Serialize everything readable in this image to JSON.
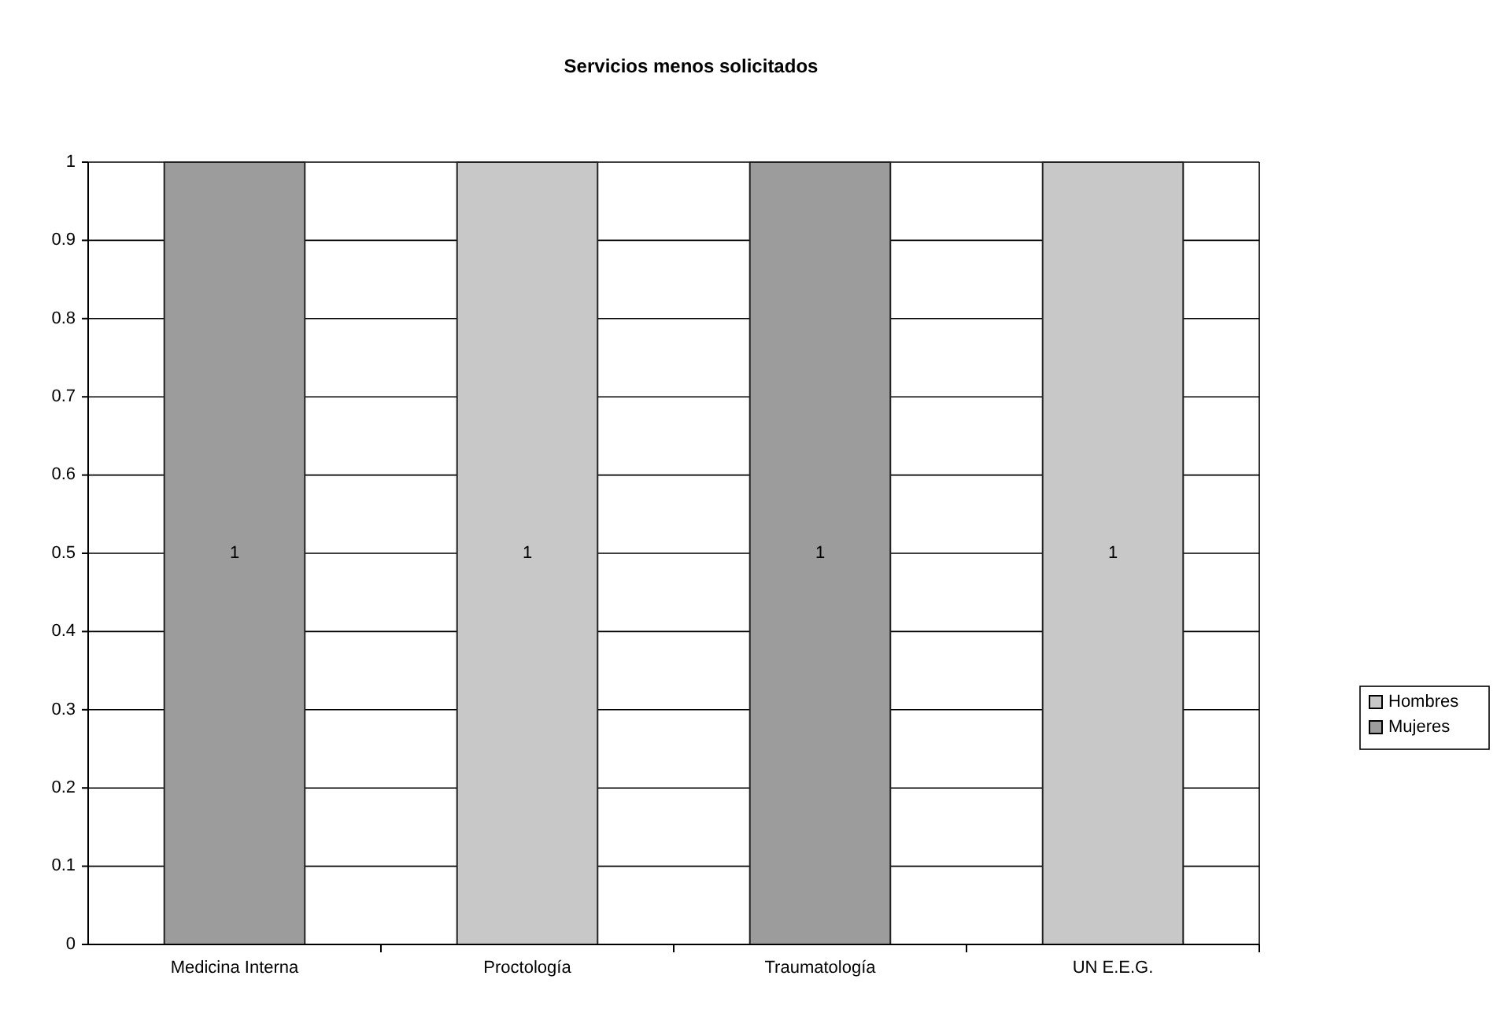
{
  "chart_data": {
    "type": "bar",
    "title": "Servicios menos solicitados",
    "categories": [
      "Medicina Interna",
      "Proctología",
      "Traumatología",
      "UN E.E.G."
    ],
    "series": [
      {
        "name": "Hombres",
        "color": "#c8c8c8",
        "values": [
          null,
          1,
          null,
          1
        ]
      },
      {
        "name": "Mujeres",
        "color": "#9c9c9c",
        "values": [
          1,
          null,
          1,
          null
        ]
      }
    ],
    "stacked": true,
    "ylim": [
      0,
      1
    ],
    "yticks": [
      0,
      0.1,
      0.2,
      0.3,
      0.4,
      0.5,
      0.6,
      0.7,
      0.8,
      0.9,
      1
    ],
    "grid": "y",
    "legend": "right",
    "data_labels": true
  }
}
